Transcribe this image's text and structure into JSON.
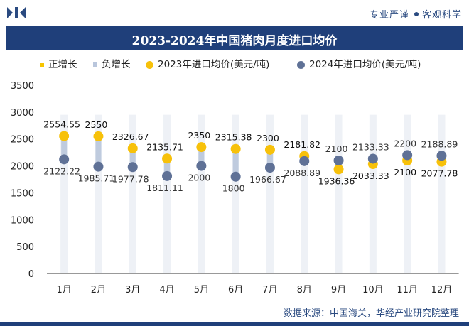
{
  "header": {
    "logo_icon": "hua-jing-logo-icon",
    "brand_left": "专业严谨",
    "brand_right": "客观科学"
  },
  "chart_data": {
    "type": "line",
    "title": "2023-2024年中国猪肉月度进口均价",
    "categories": [
      "1月",
      "2月",
      "3月",
      "4月",
      "5月",
      "6月",
      "7月",
      "8月",
      "9月",
      "10月",
      "11月",
      "12月"
    ],
    "series": [
      {
        "name": "2023年进口均价(美元/吨)",
        "color": "#f7c10a",
        "values": [
          2554.55,
          2550,
          2326.67,
          2135.71,
          2350,
          2315.38,
          2300,
          2181.82,
          1936.36,
          2033.33,
          2100,
          2077.78
        ]
      },
      {
        "name": "2024年进口均价(美元/吨)",
        "color": "#5f7196",
        "values": [
          2122.22,
          1985.71,
          1977.78,
          1811.11,
          2000,
          1800,
          1966.67,
          2088.89,
          2100,
          2133.33,
          2200,
          2188.89
        ]
      }
    ],
    "value_labels_2023": [
      "2554.55",
      "2550",
      "2326.67",
      "2135.71",
      "2350",
      "2315.38",
      "2300",
      "2181.82",
      "1936.36",
      "2033.33",
      "2100",
      "2077.78"
    ],
    "value_labels_2024": [
      "2122.22",
      "1985.71",
      "1977.78",
      "1811.11",
      "2000",
      "1800",
      "1966.67",
      "2088.89",
      "2100",
      "2133.33",
      "2200",
      "2188.89"
    ],
    "legend": [
      "正增长",
      "负增长",
      "2023年进口均价(美元/吨)",
      "2024年进口均价(美元/吨)"
    ],
    "increase_color": "#f7c500",
    "decrease_color": "#b9c6dc",
    "ylim": [
      0,
      3500
    ],
    "yticks": [
      0,
      500,
      1000,
      1500,
      2000,
      2500,
      3000,
      3500
    ],
    "ytick_labels": [
      "0",
      "500",
      "1000",
      "1500",
      "2000",
      "2500",
      "3000",
      "3500"
    ],
    "xlabel": "",
    "ylabel": "",
    "grid": false
  },
  "footer": {
    "source": "数据来源：中国海关，华经产业研究院整理"
  }
}
